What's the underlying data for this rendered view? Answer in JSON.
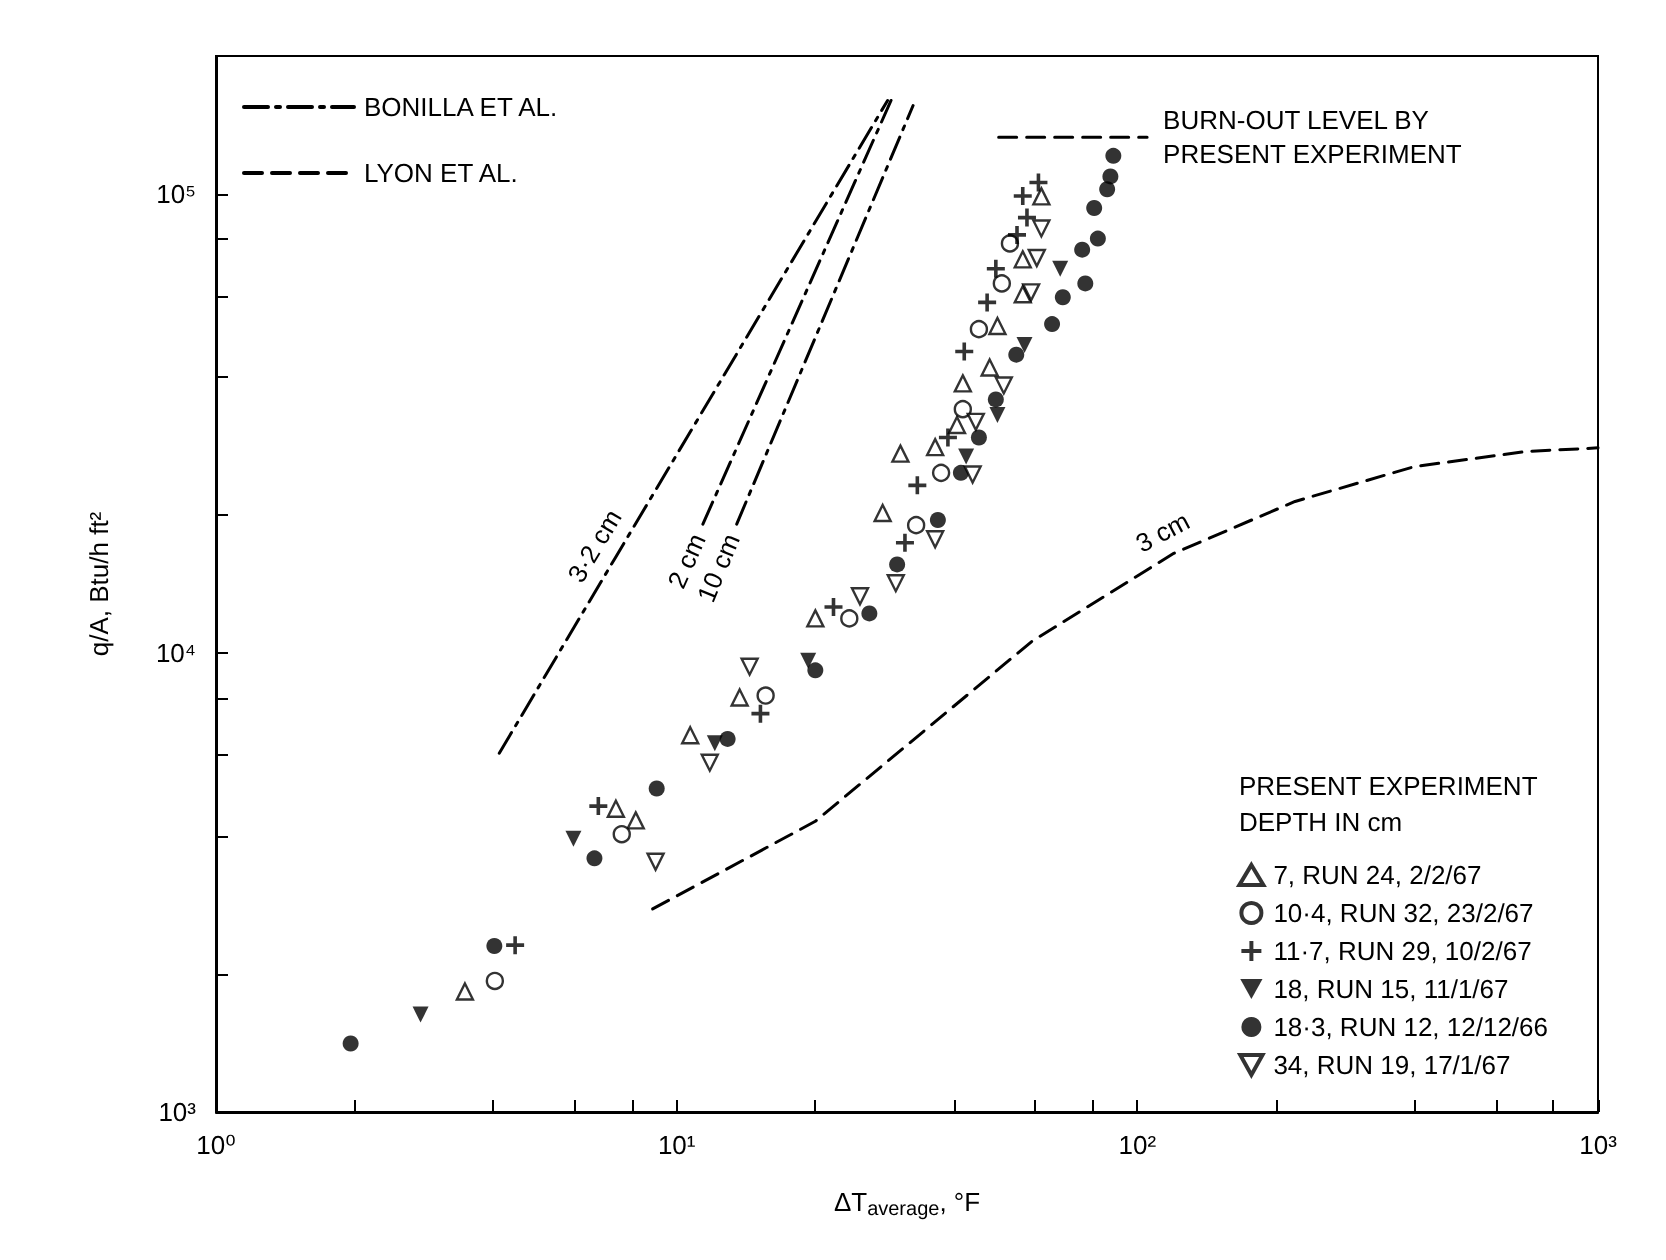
{
  "chart_data": {
    "type": "scatter",
    "xlabel": "ΔT$_{average}$, °F",
    "ylabel": "q/A, Btu/h ft²",
    "legend_title": "PRESENT EXPERIMENT\nDEPTH IN cm",
    "log": "xy",
    "grid": false,
    "legend": "bottom right",
    "xlim": [
      1,
      1000
    ],
    "ylim": [
      1000,
      200000
    ],
    "xticks": [
      {
        "value": 1,
        "label": "10⁰"
      },
      {
        "value": 2,
        "label": null
      },
      {
        "value": 4,
        "label": null
      },
      {
        "value": 6,
        "label": null
      },
      {
        "value": 8,
        "label": null
      },
      {
        "value": 10,
        "label": "10¹"
      },
      {
        "value": 20,
        "label": null
      },
      {
        "value": 40,
        "label": null
      },
      {
        "value": 60,
        "label": null
      },
      {
        "value": 80,
        "label": null
      },
      {
        "value": 100,
        "label": "10²"
      },
      {
        "value": 200,
        "label": null
      },
      {
        "value": 400,
        "label": null
      },
      {
        "value": 600,
        "label": null
      },
      {
        "value": 800,
        "label": null
      },
      {
        "value": 1000,
        "label": "10³"
      }
    ],
    "yticks": [
      {
        "value": 1000,
        "label": "10³"
      },
      {
        "value": 2000,
        "label": null
      },
      {
        "value": 4000,
        "label": null
      },
      {
        "value": 6000,
        "label": null
      },
      {
        "value": 8000,
        "label": null
      },
      {
        "value": 10000,
        "label": "10⁴"
      },
      {
        "value": 20000,
        "label": null
      },
      {
        "value": 40000,
        "label": null
      },
      {
        "value": 60000,
        "label": null
      },
      {
        "value": 80000,
        "label": null
      },
      {
        "value": 100000,
        "label": "10⁵"
      }
    ],
    "series": [
      {
        "name": "7, RUN 24, 2/2/67",
        "marker": "triangle-open",
        "color": "#000000",
        "x": [
          3.47,
          7.38,
          8.15,
          10.7,
          13.7,
          20.0,
          28.0,
          30.6,
          36.4,
          40.6,
          41.8,
          47.8,
          49.7,
          56.4,
          56.4,
          61.9
        ],
        "values": [
          1830,
          4580,
          4320,
          6620,
          8000,
          11900,
          20200,
          27200,
          28100,
          31400,
          38700,
          41900,
          51600,
          60500,
          72100,
          98900
        ]
      },
      {
        "name": "10·4, RUN 32, 23/2/67",
        "marker": "circle-open",
        "color": "#000000",
        "x": [
          4.03,
          7.6,
          15.6,
          23.7,
          33.1,
          37.5,
          41.8,
          45.3,
          50.8,
          52.9
        ],
        "values": [
          1930,
          4030,
          8080,
          11900,
          19000,
          24700,
          34000,
          50800,
          63900,
          78100
        ]
      },
      {
        "name": "11·7, RUN 29, 10/2/67",
        "marker": "cross",
        "color": "#000000",
        "x": [
          4.46,
          6.76,
          15.2,
          21.9,
          31.3,
          33.3,
          38.8,
          42.1,
          47.2,
          49.3,
          54.8,
          57.6,
          56.4,
          61.0
        ],
        "values": [
          2310,
          4640,
          7380,
          12600,
          17400,
          23200,
          29500,
          45400,
          58100,
          68800,
          81500,
          88900,
          99100,
          106000
        ]
      },
      {
        "name": "18, RUN 15, 11/1/67",
        "marker": "triangle-down",
        "color": "#000000",
        "x": [
          2.78,
          5.97,
          12.1,
          19.3,
          42.5,
          49.7,
          56.9,
          68.0
        ],
        "values": [
          1630,
          3940,
          6360,
          9620,
          26800,
          33000,
          46900,
          68800
        ]
      },
      {
        "name": "18·3, RUN 12, 12/12/66",
        "marker": "circle",
        "color": "#000000",
        "x": [
          1.96,
          4.02,
          6.63,
          9.05,
          12.9,
          20.0,
          26.2,
          30.1,
          36.9,
          41.4,
          45.3,
          49.3,
          54.6,
          65.3,
          68.9,
          77.1,
          75.9,
          82.1,
          80.6,
          86.0,
          87.4,
          88.7
        ],
        "values": [
          1410,
          2300,
          3570,
          5070,
          6500,
          9170,
          12200,
          15600,
          19500,
          24700,
          29500,
          35700,
          44700,
          52100,
          59600,
          63900,
          75700,
          80000,
          93300,
          102500,
          109300,
          121200
        ]
      },
      {
        "name": "34, RUN 19, 17/1/67",
        "marker": "triangle-down-open",
        "color": "#000000",
        "x": [
          9.0,
          11.8,
          14.4,
          25.0,
          29.9,
          36.4,
          43.9,
          44.6,
          51.3,
          58.8,
          60.5,
          61.9
        ],
        "values": [
          3510,
          5770,
          9340,
          13300,
          14200,
          17700,
          24500,
          31900,
          38300,
          61100,
          72600,
          84200
        ]
      },
      {
        "name": "BONILLA ET AL.",
        "type": "line",
        "line_style": "dashdot",
        "marker": "none",
        "color": "#000000",
        "x": [
          4.12,
          7.35,
          28.7
        ],
        "values": [
          6050,
          16100,
          160000
        ]
      },
      {
        "type": "line",
        "line_style": "dashdot",
        "marker": "none",
        "color": "#000000",
        "x": [
          11.4,
          29.2
        ],
        "values": [
          19100,
          160000
        ]
      },
      {
        "type": "line",
        "line_style": "dashdot",
        "marker": "none",
        "color": "#000000",
        "x": [
          13.5,
          32.6
        ],
        "values": [
          19100,
          156000
        ]
      },
      {
        "name": "LYON ET AL.",
        "type": "line",
        "line_style": "dashed",
        "marker": "none",
        "color": "#000000",
        "x": [
          8.87,
          20,
          59,
          120,
          220,
          400,
          700,
          1000
        ],
        "values": [
          2770,
          4300,
          10600,
          16500,
          21400,
          25500,
          27500,
          28000
        ]
      },
      {
        "type": "line",
        "line_style": "dashed",
        "marker": "none",
        "color": "#000000",
        "x": [
          50,
          105
        ],
        "values": [
          133000,
          133000
        ]
      }
    ],
    "annotations": [
      {
        "text": "3·2 cm",
        "x": 7.35,
        "y": 16100
      },
      {
        "text": "2 cm",
        "x": 11.4,
        "y": 19100
      },
      {
        "text": "10 cm",
        "x": 13.5,
        "y": 19100
      },
      {
        "text": "3 cm",
        "x": 120,
        "y": 16500
      },
      {
        "text": "BURN-OUT LEVEL BY\nPRESENT EXPERIMENT",
        "x": 105,
        "y": 133000
      }
    ]
  }
}
